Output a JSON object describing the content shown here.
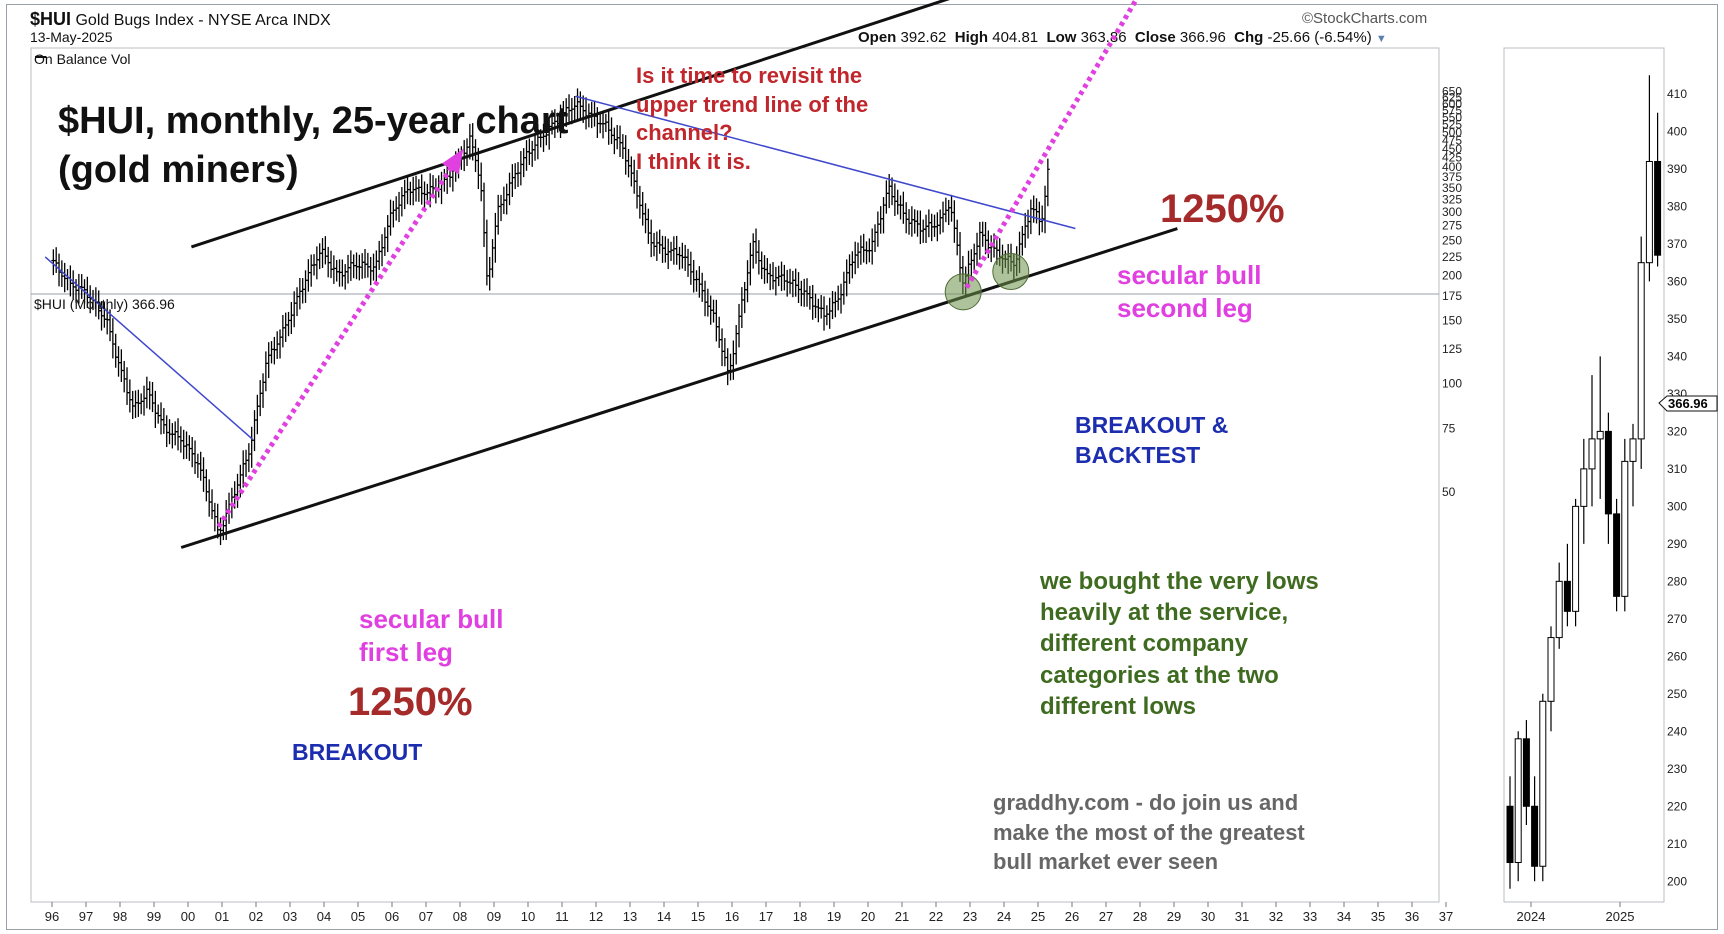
{
  "header": {
    "symbol": "$HUI",
    "name": "Gold Bugs Index - NYSE Arca INDX",
    "date": "13-May-2025",
    "open_label": "Open",
    "open": "392.62",
    "high_label": "High",
    "high": "404.81",
    "low_label": "Low",
    "low": "363.86",
    "close_label": "Close",
    "close": "366.96",
    "chg_label": "Chg",
    "chg": "-25.66 (-6.54%)",
    "brand": "©StockCharts.com"
  },
  "panels": {
    "upper_label": "On Balance Vol",
    "main_label": "$HUI (Monthly) 366.96",
    "last_price_tag": "366.96"
  },
  "annotations": {
    "title": "$HUI, monthly, 25-year chart\n(gold miners)",
    "question": "Is it time to revisit the\nupper trend line of the\nchannel?\nI think it is.",
    "pct_second": "1250%",
    "second_leg": "secular bull\nsecond leg",
    "breakout_backtest": "BREAKOUT &\nBACKTEST",
    "first_leg": "secular bull\nfirst leg",
    "pct_first": "1250%",
    "breakout": "BREAKOUT",
    "bought": "we bought the very lows\nheavily at the service,\ndifferent company\ncategories at the two\ndifferent lows",
    "ad": "graddhy.com - do join us and\nmake the most of the greatest\nbull market ever seen"
  },
  "colors": {
    "price_bars": "#000000",
    "channel_lines": "#111111",
    "downtrend_lines": "#3f48cc",
    "projection_arrow": "#e040e0",
    "low_circles": "#6b8f4a"
  },
  "chart_data": [
    {
      "type": "ohlc",
      "scale": "log",
      "x": [
        "96",
        "97",
        "98",
        "99",
        "00",
        "01",
        "02",
        "03",
        "04",
        "05",
        "06",
        "07",
        "08",
        "09",
        "10",
        "11",
        "12",
        "13",
        "14",
        "15",
        "16",
        "17",
        "18",
        "19",
        "20",
        "21",
        "22",
        "23",
        "24",
        "25",
        "26",
        "27",
        "28",
        "29",
        "30",
        "31",
        "32",
        "33",
        "34",
        "35",
        "36",
        "37"
      ],
      "ytick_labels": [
        "650",
        "625",
        "600",
        "575",
        "550",
        "525",
        "500",
        "475",
        "450",
        "425",
        "400",
        "375",
        "350",
        "325",
        "300",
        "275",
        "250",
        "225",
        "200",
        "175",
        "150",
        "125",
        "100",
        "75",
        "50"
      ],
      "approx_close_path": [
        {
          "x": 1996.0,
          "y": 220
        },
        {
          "x": 1996.5,
          "y": 190
        },
        {
          "x": 1997.0,
          "y": 180
        },
        {
          "x": 1997.6,
          "y": 150
        },
        {
          "x": 1998.0,
          "y": 110
        },
        {
          "x": 1998.4,
          "y": 85
        },
        {
          "x": 1998.8,
          "y": 95
        },
        {
          "x": 1999.3,
          "y": 75
        },
        {
          "x": 1999.8,
          "y": 70
        },
        {
          "x": 2000.3,
          "y": 60
        },
        {
          "x": 2000.7,
          "y": 45
        },
        {
          "x": 2000.9,
          "y": 38
        },
        {
          "x": 2001.3,
          "y": 48
        },
        {
          "x": 2001.8,
          "y": 65
        },
        {
          "x": 2002.3,
          "y": 115
        },
        {
          "x": 2002.8,
          "y": 140
        },
        {
          "x": 2003.4,
          "y": 190
        },
        {
          "x": 2003.9,
          "y": 235
        },
        {
          "x": 2004.4,
          "y": 200
        },
        {
          "x": 2004.9,
          "y": 215
        },
        {
          "x": 2005.5,
          "y": 210
        },
        {
          "x": 2006.0,
          "y": 300
        },
        {
          "x": 2006.5,
          "y": 350
        },
        {
          "x": 2007.0,
          "y": 340
        },
        {
          "x": 2007.5,
          "y": 360
        },
        {
          "x": 2008.0,
          "y": 420
        },
        {
          "x": 2008.3,
          "y": 480
        },
        {
          "x": 2008.6,
          "y": 370
        },
        {
          "x": 2008.8,
          "y": 190
        },
        {
          "x": 2009.1,
          "y": 300
        },
        {
          "x": 2009.6,
          "y": 380
        },
        {
          "x": 2010.0,
          "y": 440
        },
        {
          "x": 2010.6,
          "y": 510
        },
        {
          "x": 2011.1,
          "y": 570
        },
        {
          "x": 2011.4,
          "y": 600
        },
        {
          "x": 2011.8,
          "y": 560
        },
        {
          "x": 2012.3,
          "y": 520
        },
        {
          "x": 2012.8,
          "y": 450
        },
        {
          "x": 2013.2,
          "y": 340
        },
        {
          "x": 2013.6,
          "y": 250
        },
        {
          "x": 2014.0,
          "y": 235
        },
        {
          "x": 2014.5,
          "y": 230
        },
        {
          "x": 2015.0,
          "y": 190
        },
        {
          "x": 2015.5,
          "y": 150
        },
        {
          "x": 2015.9,
          "y": 105
        },
        {
          "x": 2016.3,
          "y": 170
        },
        {
          "x": 2016.6,
          "y": 245
        },
        {
          "x": 2017.0,
          "y": 200
        },
        {
          "x": 2017.6,
          "y": 195
        },
        {
          "x": 2018.1,
          "y": 180
        },
        {
          "x": 2018.7,
          "y": 155
        },
        {
          "x": 2019.1,
          "y": 170
        },
        {
          "x": 2019.6,
          "y": 230
        },
        {
          "x": 2020.1,
          "y": 240
        },
        {
          "x": 2020.6,
          "y": 350
        },
        {
          "x": 2021.1,
          "y": 290
        },
        {
          "x": 2021.6,
          "y": 270
        },
        {
          "x": 2022.1,
          "y": 280
        },
        {
          "x": 2022.4,
          "y": 320
        },
        {
          "x": 2022.8,
          "y": 190
        },
        {
          "x": 2023.3,
          "y": 260
        },
        {
          "x": 2023.8,
          "y": 230
        },
        {
          "x": 2024.3,
          "y": 215
        },
        {
          "x": 2024.8,
          "y": 310
        },
        {
          "x": 2025.1,
          "y": 280
        },
        {
          "x": 2025.3,
          "y": 392
        },
        {
          "x": 2025.37,
          "y": 367
        }
      ],
      "trend_lines": [
        {
          "name": "upper channel",
          "from": {
            "x": 2000.1,
            "y": 240
          },
          "to": {
            "x": 2029.1,
            "y": 1900
          }
        },
        {
          "name": "lower channel",
          "from": {
            "x": 1999.8,
            "y": 35
          },
          "to": {
            "x": 2029.1,
            "y": 270
          }
        },
        {
          "name": "2011 downtrend",
          "from": {
            "x": 2011.4,
            "y": 630
          },
          "to": {
            "x": 2026.1,
            "y": 270
          }
        },
        {
          "name": "1996 downtrend",
          "from": {
            "x": 1995.8,
            "y": 225
          },
          "to": {
            "x": 2001.9,
            "y": 70
          }
        }
      ],
      "projection_arrows": [
        {
          "from": {
            "x": 2000.9,
            "y": 40
          },
          "to": {
            "x": 2008.1,
            "y": 450
          }
        },
        {
          "from": {
            "x": 2022.9,
            "y": 185
          },
          "to": {
            "x": 2029.2,
            "y": 1900
          }
        }
      ],
      "marked_lows": [
        {
          "x": 2022.8,
          "y": 180
        },
        {
          "x": 2024.2,
          "y": 205
        }
      ]
    },
    {
      "type": "candlestick",
      "x": [
        "2024",
        "2025"
      ],
      "ytick_labels": [
        "410",
        "400",
        "390",
        "380",
        "370",
        "360",
        "350",
        "340",
        "330",
        "320",
        "310",
        "300",
        "290",
        "280",
        "270",
        "260",
        "250",
        "240",
        "230",
        "220",
        "210",
        "200"
      ],
      "ylim": [
        195,
        418
      ],
      "candles": [
        {
          "o": 220,
          "h": 228,
          "l": 198,
          "c": 205
        },
        {
          "o": 205,
          "h": 240,
          "l": 200,
          "c": 238
        },
        {
          "o": 238,
          "h": 243,
          "l": 215,
          "c": 220
        },
        {
          "o": 220,
          "h": 228,
          "l": 200,
          "c": 204
        },
        {
          "o": 204,
          "h": 250,
          "l": 200,
          "c": 248
        },
        {
          "o": 248,
          "h": 268,
          "l": 240,
          "c": 265
        },
        {
          "o": 265,
          "h": 285,
          "l": 262,
          "c": 280
        },
        {
          "o": 280,
          "h": 290,
          "l": 268,
          "c": 272
        },
        {
          "o": 272,
          "h": 302,
          "l": 268,
          "c": 300
        },
        {
          "o": 300,
          "h": 318,
          "l": 290,
          "c": 310
        },
        {
          "o": 310,
          "h": 335,
          "l": 300,
          "c": 318
        },
        {
          "o": 318,
          "h": 340,
          "l": 302,
          "c": 320
        },
        {
          "o": 320,
          "h": 325,
          "l": 290,
          "c": 298
        },
        {
          "o": 298,
          "h": 302,
          "l": 272,
          "c": 276
        },
        {
          "o": 276,
          "h": 318,
          "l": 272,
          "c": 312
        },
        {
          "o": 312,
          "h": 322,
          "l": 300,
          "c": 318
        },
        {
          "o": 318,
          "h": 372,
          "l": 310,
          "c": 365
        },
        {
          "o": 365,
          "h": 415,
          "l": 360,
          "c": 392
        },
        {
          "o": 392,
          "h": 405,
          "l": 364,
          "c": 367
        }
      ]
    }
  ]
}
